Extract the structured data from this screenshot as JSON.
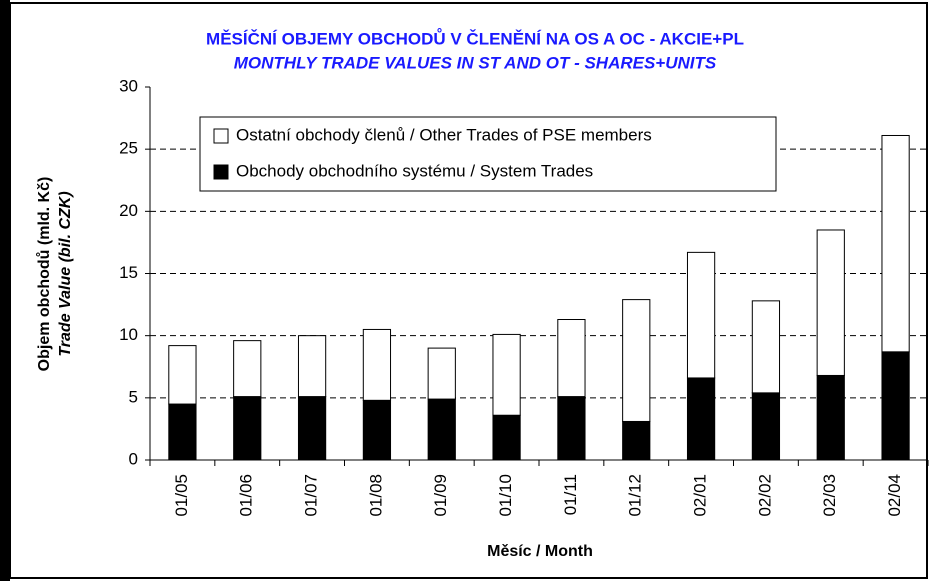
{
  "chart_data": {
    "type": "stacked_bar",
    "title": "MĚSÍČNÍ OBJEMY OBCHODŮ V ČLENĚNÍ NA OS A OC - AKCIE+PL",
    "subtitle": "MONTHLY TRADE VALUES IN ST AND OT - SHARES+UNITS",
    "y_label": [
      "Objem obchodů (mld. Kč)",
      "Trade Value (bil. CZK)"
    ],
    "x_label": "Měsíc / Month",
    "categories": [
      "01/05",
      "01/06",
      "01/07",
      "01/08",
      "01/09",
      "01/10",
      "01/11",
      "01/12",
      "02/01",
      "02/02",
      "02/03",
      "02/04"
    ],
    "series": [
      {
        "name": "Obchody obchodního systému / System Trades",
        "color": "#000000",
        "values": [
          4.5,
          5.1,
          5.1,
          4.8,
          4.9,
          3.6,
          5.1,
          3.1,
          6.6,
          5.4,
          6.8,
          8.7
        ]
      },
      {
        "name": "Ostatní obchody členů / Other Trades of PSE members",
        "color": "#ffffff",
        "values": [
          4.7,
          4.5,
          4.9,
          5.7,
          4.1,
          6.5,
          6.2,
          9.8,
          10.1,
          7.4,
          11.7,
          17.4
        ]
      }
    ],
    "ylim": [
      0,
      30
    ],
    "yticks": [
      0,
      5,
      10,
      15,
      20,
      25,
      30
    ],
    "grid": true
  }
}
